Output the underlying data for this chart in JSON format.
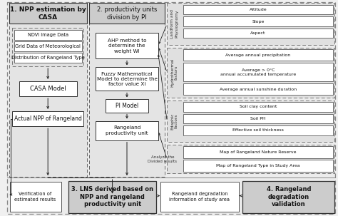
{
  "bg_color": "#e8e8e8",
  "section1_title": "1. NPP estimation by\nCASA",
  "section2_title": "2. productivity units\ndivision by PI",
  "section3_title": "3. LNS derived based on\nNPP and rangeland\nproductivity unit",
  "section4_title": "4. Rangeland\ndegradation\nvalidation",
  "s1_boxes": [
    "NDVI Image Data",
    "Grid Data of Meteorological",
    "Distribution of Rangeland Type"
  ],
  "s1_casa": "CASA Model",
  "s1_actual": "Actual NPP of Rangeland",
  "s1_verify": "Verification of\nestimated results",
  "s2_ahp": "AHP method to\ndetermine the\nweight Wi",
  "s2_fuzzy": "Fuzzy Mathematical\nModel to determine the\nfactor value Xi",
  "s2_pi": "PI Model",
  "s2_rangeland": "Rangeland\nproductivity unit",
  "s2_analyze": "Analyze the\nDivided results",
  "physio_label": "Landform and\nPhysiognomy",
  "hydro_label": "Hydrothermal\nfactors",
  "edaphic_label": "Edaphic\nfactors",
  "physio_items": [
    "Altitude",
    "Slope",
    "Aspect"
  ],
  "hydro_items": [
    "Average annual precipitation",
    "Average > 0°C\nannual accumulated temperature",
    "Average annual sunshine duration"
  ],
  "edaphic_items": [
    "Soil clay content",
    "Soil PH",
    "Effective soil thickness"
  ],
  "map_items": [
    "Map of Rangeland Nature Reserve",
    "Map of Rangeland Type in Study Area"
  ],
  "middle_bottom": "Rangeland degradation\ninformation of study area"
}
